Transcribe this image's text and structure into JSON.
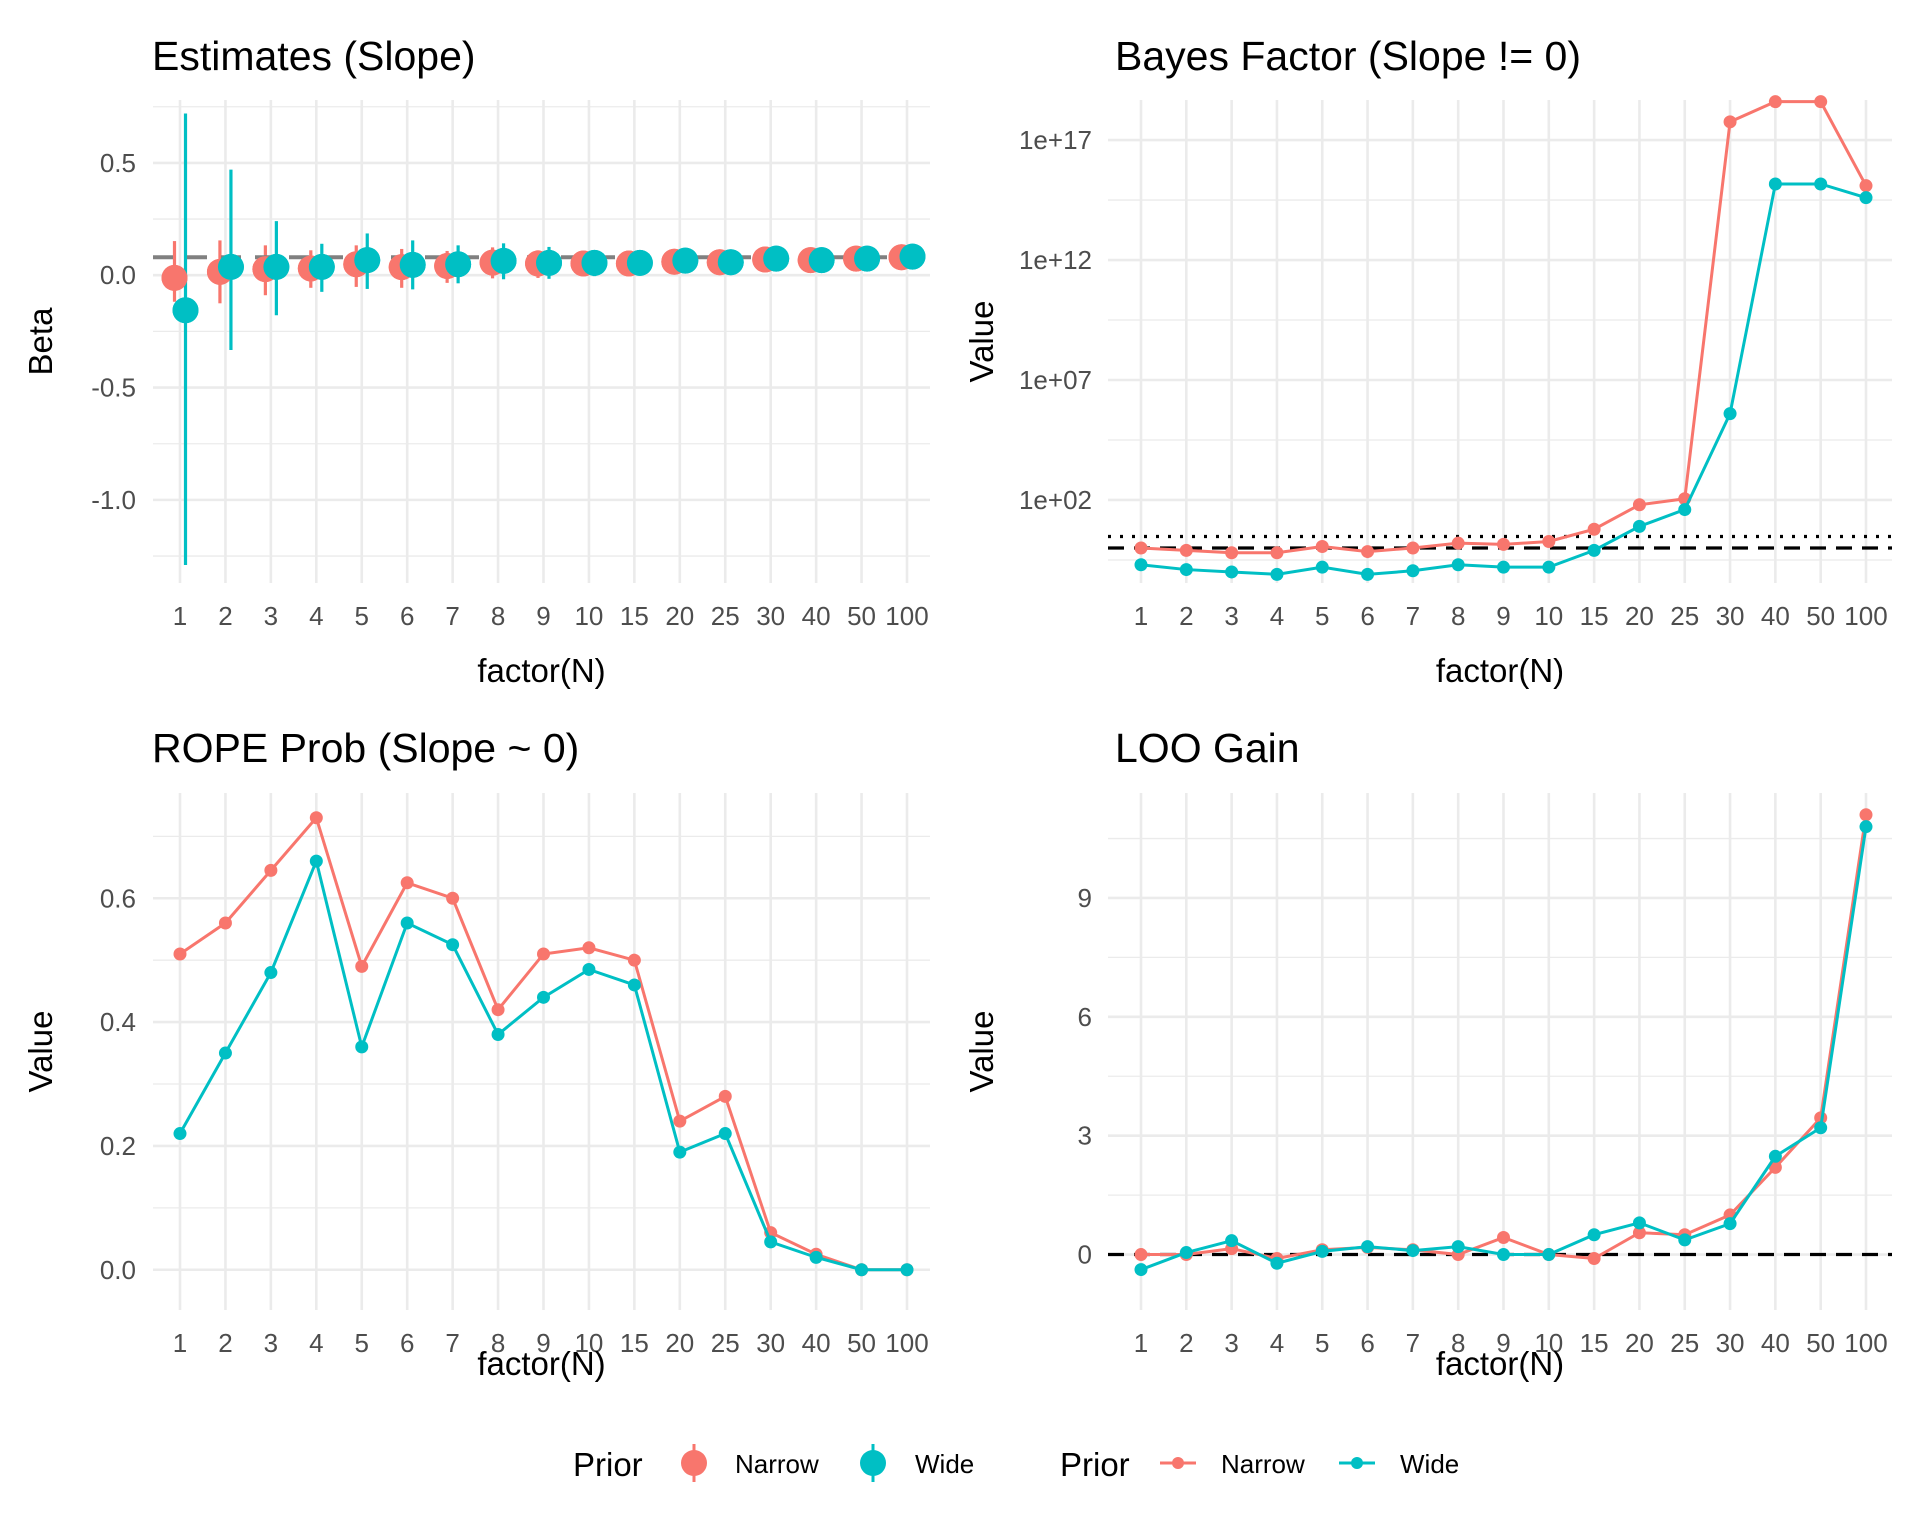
{
  "colors": {
    "narrow": "#F8766D",
    "wide": "#00BFC4",
    "refline_gray": "#808080",
    "refline_black": "#000000"
  },
  "chart_data": [
    {
      "id": "estimates",
      "type": "pointrange",
      "title": "Estimates (Slope)",
      "xlabel": "factor(N)",
      "ylabel": "Beta",
      "categories": [
        "1",
        "2",
        "3",
        "4",
        "5",
        "6",
        "7",
        "8",
        "9",
        "10",
        "15",
        "20",
        "25",
        "30",
        "40",
        "50",
        "100"
      ],
      "ylim": [
        -1.37,
        0.78
      ],
      "yticks": [
        {
          "value": 0.5,
          "label": "0.5"
        },
        {
          "value": 0.0,
          "label": "0.0"
        },
        {
          "value": -0.5,
          "label": "-0.5"
        },
        {
          "value": -1.0,
          "label": "-1.0"
        }
      ],
      "yminor": [
        0.75,
        0.25,
        -0.25,
        -0.75,
        -1.25
      ],
      "hlines": [
        {
          "value": 0.08,
          "style": "dashed",
          "color": "gray"
        }
      ],
      "grid": true,
      "series": [
        {
          "name": "Narrow",
          "estimate": [
            -0.012,
            0.015,
            0.027,
            0.03,
            0.049,
            0.036,
            0.041,
            0.056,
            0.052,
            0.052,
            0.052,
            0.06,
            0.058,
            0.07,
            0.067,
            0.074,
            0.08
          ],
          "lower": [
            -0.118,
            -0.125,
            -0.089,
            -0.056,
            -0.052,
            -0.056,
            -0.034,
            -0.014,
            -0.012,
            -0.003,
            0.03,
            0.04,
            0.042,
            0.055,
            0.055,
            0.063,
            0.07
          ],
          "upper": [
            0.152,
            0.155,
            0.133,
            0.111,
            0.133,
            0.117,
            0.108,
            0.124,
            0.111,
            0.104,
            0.075,
            0.08,
            0.074,
            0.085,
            0.08,
            0.085,
            0.09
          ]
        },
        {
          "name": "Wide",
          "estimate": [
            -0.156,
            0.037,
            0.037,
            0.037,
            0.067,
            0.046,
            0.049,
            0.064,
            0.055,
            0.055,
            0.055,
            0.065,
            0.058,
            0.074,
            0.067,
            0.074,
            0.083
          ],
          "lower": [
            -1.29,
            -0.333,
            -0.178,
            -0.074,
            -0.061,
            -0.063,
            -0.036,
            -0.018,
            -0.016,
            -0.004,
            0.03,
            0.045,
            0.042,
            0.06,
            0.055,
            0.063,
            0.072
          ],
          "upper": [
            0.72,
            0.47,
            0.241,
            0.14,
            0.186,
            0.155,
            0.133,
            0.142,
            0.126,
            0.111,
            0.08,
            0.085,
            0.074,
            0.088,
            0.08,
            0.085,
            0.094
          ]
        }
      ]
    },
    {
      "id": "bayes-factor",
      "type": "line",
      "title": "Bayes Factor (Slope != 0)",
      "xlabel": "factor(N)",
      "ylabel": "Value",
      "yscale": "log10",
      "categories": [
        "1",
        "2",
        "3",
        "4",
        "5",
        "6",
        "7",
        "8",
        "9",
        "10",
        "15",
        "20",
        "25",
        "30",
        "40",
        "50",
        "100"
      ],
      "ylim_log10": [
        -1.46,
        18.67
      ],
      "yticks": [
        {
          "value": 17,
          "label": "1e+17"
        },
        {
          "value": 12,
          "label": "1e+12"
        },
        {
          "value": 7,
          "label": "1e+07"
        },
        {
          "value": 2,
          "label": "1e+02"
        }
      ],
      "yminor": [
        14.5,
        9.5,
        4.5,
        -0.5
      ],
      "hlines": [
        {
          "value": 0,
          "style": "dashed",
          "color": "black",
          "meaning": "BF = 1"
        },
        {
          "value": 0.477,
          "style": "dotted",
          "color": "black",
          "meaning": "BF = 3"
        }
      ],
      "grid": true,
      "series": [
        {
          "name": "Narrow",
          "log10_values": [
            0.0,
            -0.1,
            -0.2,
            -0.2,
            0.06,
            -0.15,
            0.0,
            0.2,
            0.15,
            0.27,
            0.78,
            1.8,
            2.05,
            17.76,
            18.6,
            18.6,
            15.1
          ]
        },
        {
          "name": "Wide",
          "log10_values": [
            -0.7,
            -0.9,
            -1.0,
            -1.1,
            -0.8,
            -1.1,
            -0.95,
            -0.7,
            -0.8,
            -0.8,
            -0.1,
            0.9,
            1.6,
            5.6,
            15.17,
            15.17,
            14.6
          ]
        }
      ]
    },
    {
      "id": "rope-prob",
      "type": "line",
      "title": "ROPE Prob (Slope ~ 0)",
      "xlabel": "factor(N)",
      "ylabel": "Value",
      "categories": [
        "1",
        "2",
        "3",
        "4",
        "5",
        "6",
        "7",
        "8",
        "9",
        "10",
        "15",
        "20",
        "25",
        "30",
        "40",
        "50",
        "100"
      ],
      "ylim": [
        -0.065,
        0.77
      ],
      "yticks": [
        {
          "value": 0.0,
          "label": "0.0"
        },
        {
          "value": 0.2,
          "label": "0.2"
        },
        {
          "value": 0.4,
          "label": "0.4"
        },
        {
          "value": 0.6,
          "label": "0.6"
        }
      ],
      "yminor": [
        0.1,
        0.3,
        0.5,
        0.7
      ],
      "hlines": [],
      "grid": true,
      "series": [
        {
          "name": "Narrow",
          "values": [
            0.51,
            0.56,
            0.645,
            0.73,
            0.49,
            0.625,
            0.6,
            0.42,
            0.51,
            0.52,
            0.5,
            0.24,
            0.28,
            0.06,
            0.025,
            0.0,
            0.0
          ]
        },
        {
          "name": "Wide",
          "values": [
            0.22,
            0.35,
            0.48,
            0.66,
            0.36,
            0.56,
            0.525,
            0.38,
            0.44,
            0.485,
            0.46,
            0.19,
            0.22,
            0.045,
            0.02,
            0.0,
            0.0
          ]
        }
      ]
    },
    {
      "id": "loo-gain",
      "type": "line",
      "title": "LOO Gain",
      "xlabel": "factor(N)",
      "ylabel": "Value",
      "categories": [
        "1",
        "2",
        "3",
        "4",
        "5",
        "6",
        "7",
        "8",
        "9",
        "10",
        "15",
        "20",
        "25",
        "30",
        "40",
        "50",
        "100"
      ],
      "ylim": [
        -1.4,
        11.65
      ],
      "yticks": [
        {
          "value": 0,
          "label": "0"
        },
        {
          "value": 3,
          "label": "3"
        },
        {
          "value": 6,
          "label": "6"
        },
        {
          "value": 9,
          "label": "9"
        }
      ],
      "yminor": [
        1.5,
        4.5,
        7.5,
        10.5
      ],
      "hlines": [
        {
          "value": 0,
          "style": "dashed",
          "color": "black"
        }
      ],
      "grid": true,
      "series": [
        {
          "name": "Narrow",
          "values": [
            0.0,
            0.0,
            0.15,
            -0.1,
            0.12,
            0.18,
            0.12,
            0.0,
            0.43,
            0.0,
            -0.1,
            0.55,
            0.5,
            1.0,
            2.2,
            3.45,
            11.1
          ]
        },
        {
          "name": "Wide",
          "values": [
            -0.38,
            0.05,
            0.35,
            -0.22,
            0.08,
            0.2,
            0.1,
            0.2,
            0.0,
            0.0,
            0.5,
            0.8,
            0.37,
            0.78,
            2.48,
            3.2,
            10.8
          ]
        }
      ]
    }
  ],
  "legend": {
    "placement": "bottom",
    "groups": [
      {
        "title": "Prior",
        "glyph": "pointrange",
        "items": [
          "Narrow",
          "Wide"
        ]
      },
      {
        "title": "Prior",
        "glyph": "line-point",
        "items": [
          "Narrow",
          "Wide"
        ]
      }
    ]
  }
}
